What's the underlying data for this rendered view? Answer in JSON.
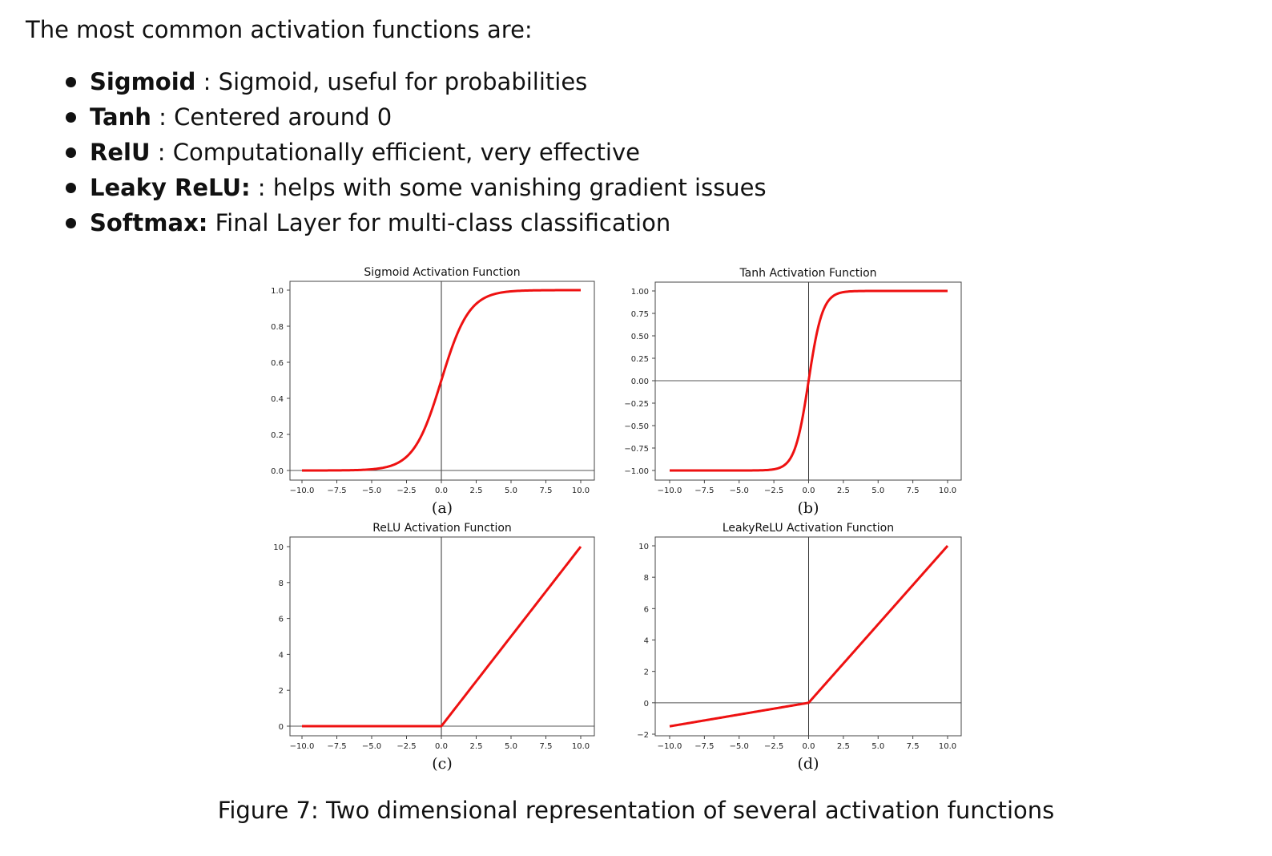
{
  "intro": "The most common activation functions are:",
  "bullets": [
    {
      "term": "Sigmoid",
      "sep": " : ",
      "desc": "Sigmoid, useful for probabilities"
    },
    {
      "term": "Tanh",
      "sep": " : ",
      "desc": "Centered around 0"
    },
    {
      "term": "RelU",
      "sep": " : ",
      "desc": "Computationally efficient, very effective"
    },
    {
      "term": "Leaky ReLU:",
      "sep": " : ",
      "desc": "helps with some vanishing gradient issues"
    },
    {
      "term": "Softmax:",
      "sep": " ",
      "desc": "Final Layer for multi-class classification"
    }
  ],
  "caption": "Figure 7: Two dimensional representation of several activation functions",
  "chart_data": [
    {
      "type": "line",
      "subfigure": "(a)",
      "title": "Sigmoid Activation Function",
      "function": "sigmoid",
      "xlim": [
        -10,
        10
      ],
      "ylim": [
        0,
        1
      ],
      "xticks": [
        "-10.0",
        "-7.5",
        "-5.0",
        "-2.5",
        "0.0",
        "2.5",
        "5.0",
        "7.5",
        "10.0"
      ],
      "yticks": [
        "0.0",
        "0.2",
        "0.4",
        "0.6",
        "0.8",
        "1.0"
      ],
      "series": [
        {
          "x": [
            -10,
            -8,
            -6,
            -5,
            -4,
            -3,
            -2,
            -1,
            0,
            1,
            2,
            3,
            4,
            5,
            6,
            8,
            10
          ],
          "y": [
            4.54e-05,
            0.000335,
            0.00247,
            0.00669,
            0.018,
            0.0474,
            0.119,
            0.269,
            0.5,
            0.731,
            0.881,
            0.953,
            0.982,
            0.993,
            0.9975,
            0.99966,
            0.99995
          ],
          "color": "#ee1111"
        }
      ],
      "grid": false
    },
    {
      "type": "line",
      "subfigure": "(b)",
      "title": "Tanh Activation Function",
      "function": "tanh",
      "xlim": [
        -10,
        10
      ],
      "ylim": [
        -1,
        1
      ],
      "xticks": [
        "-10.0",
        "-7.5",
        "-5.0",
        "-2.5",
        "0.0",
        "2.5",
        "5.0",
        "7.5",
        "10.0"
      ],
      "yticks": [
        "-1.00",
        "-0.75",
        "-0.50",
        "-0.25",
        "0.00",
        "0.25",
        "0.50",
        "0.75",
        "1.00"
      ],
      "series": [
        {
          "x": [
            -10,
            -5,
            -3,
            -2,
            -1.5,
            -1,
            -0.5,
            0,
            0.5,
            1,
            1.5,
            2,
            3,
            5,
            10
          ],
          "y": [
            -1,
            -0.9999,
            -0.995,
            -0.964,
            -0.905,
            -0.762,
            -0.462,
            0,
            0.462,
            0.762,
            0.905,
            0.964,
            0.995,
            0.9999,
            1
          ],
          "color": "#ee1111"
        }
      ],
      "grid": false
    },
    {
      "type": "line",
      "subfigure": "(c)",
      "title": "ReLU Activation Function",
      "function": "relu",
      "xlim": [
        -10,
        10
      ],
      "ylim": [
        0,
        10
      ],
      "xticks": [
        "-10.0",
        "-7.5",
        "-5.0",
        "-2.5",
        "0.0",
        "2.5",
        "5.0",
        "7.5",
        "10.0"
      ],
      "yticks": [
        "0",
        "2",
        "4",
        "6",
        "8",
        "10"
      ],
      "series": [
        {
          "x": [
            -10,
            0,
            10
          ],
          "y": [
            0,
            0,
            10
          ],
          "color": "#ee1111"
        }
      ],
      "grid": false
    },
    {
      "type": "line",
      "subfigure": "(d)",
      "title": "LeakyReLU Activation Function",
      "function": "leaky_relu",
      "xlim": [
        -10,
        10
      ],
      "ylim": [
        -2,
        10
      ],
      "xticks": [
        "-10.0",
        "-7.5",
        "-5.0",
        "-2.5",
        "0.0",
        "2.5",
        "5.0",
        "7.5",
        "10.0"
      ],
      "yticks": [
        "-2",
        "0",
        "2",
        "4",
        "6",
        "8",
        "10"
      ],
      "series": [
        {
          "x": [
            -10,
            0,
            10
          ],
          "y": [
            -1.5,
            0,
            10
          ],
          "color": "#ee1111"
        }
      ],
      "grid": false
    }
  ]
}
